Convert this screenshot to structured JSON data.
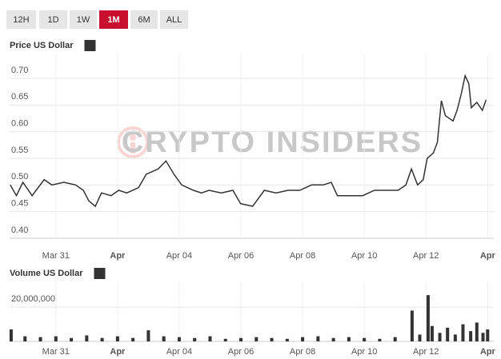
{
  "range_buttons": [
    "12H",
    "1D",
    "1W",
    "1M",
    "6M",
    "ALL"
  ],
  "active_button": 3,
  "watermark": "CRYPTO INSIDERS",
  "chart_data": [
    {
      "type": "line",
      "x": [
        -1.48,
        -1.28,
        -1.07,
        -0.77,
        -0.38,
        -0.13,
        0.26,
        0.64,
        0.89,
        1.07,
        1.28,
        1.48,
        1.79,
        2.04,
        2.3,
        2.68,
        2.93,
        3.32,
        3.57,
        3.83,
        4.08,
        4.46,
        4.72,
        4.97,
        5.36,
        5.74,
        5.99,
        6.38,
        6.76,
        7.14,
        7.53,
        7.91,
        8.29,
        8.67,
        8.93,
        9.13,
        9.57,
        9.95,
        10.33,
        10.71,
        11.1,
        11.35,
        11.53,
        11.73,
        11.91,
        12.04,
        12.24,
        12.37,
        12.5,
        12.63,
        12.88,
        13.01,
        13.14,
        13.27,
        13.39,
        13.47,
        13.65,
        13.83,
        13.95
      ],
      "series": [
        {
          "name": "Price US Dollar",
          "color": "#333333",
          "values": [
            0.5,
            0.48,
            0.505,
            0.48,
            0.51,
            0.5,
            0.505,
            0.5,
            0.49,
            0.47,
            0.46,
            0.485,
            0.48,
            0.49,
            0.485,
            0.495,
            0.52,
            0.53,
            0.545,
            0.52,
            0.5,
            0.49,
            0.485,
            0.49,
            0.485,
            0.49,
            0.465,
            0.46,
            0.49,
            0.485,
            0.49,
            0.49,
            0.5,
            0.5,
            0.505,
            0.48,
            0.48,
            0.48,
            0.49,
            0.49,
            0.49,
            0.5,
            0.53,
            0.5,
            0.51,
            0.55,
            0.56,
            0.58,
            0.658,
            0.63,
            0.62,
            0.64,
            0.67,
            0.705,
            0.69,
            0.645,
            0.655,
            0.64,
            0.66
          ]
        }
      ],
      "xlim": [
        -1.5,
        14.2
      ],
      "xticks": [
        {
          "value": 0,
          "label": "Mar 31"
        },
        {
          "value": 2,
          "label": "Apr"
        },
        {
          "value": 4,
          "label": "Apr 04"
        },
        {
          "value": 6,
          "label": "Apr 06"
        },
        {
          "value": 8,
          "label": "Apr 08"
        },
        {
          "value": 10,
          "label": "Apr 10"
        },
        {
          "value": 12,
          "label": "Apr 12"
        },
        {
          "value": 14,
          "label": "Apr"
        }
      ],
      "ylim": [
        0.4,
        0.745
      ],
      "yticks": [
        {
          "value": 0.4,
          "label": "0.40"
        },
        {
          "value": 0.45,
          "label": "0.45"
        },
        {
          "value": 0.5,
          "label": "0.50"
        },
        {
          "value": 0.55,
          "label": "0.55"
        },
        {
          "value": 0.6,
          "label": "0.60"
        },
        {
          "value": 0.65,
          "label": "0.65"
        },
        {
          "value": 0.7,
          "label": "0.70"
        }
      ],
      "grid": true
    },
    {
      "type": "bar",
      "x": [
        -1.45,
        -1.0,
        -0.5,
        0,
        0.5,
        1,
        1.5,
        2,
        2.5,
        3,
        3.5,
        4,
        4.5,
        5,
        5.5,
        6,
        6.5,
        7,
        7.5,
        8,
        8.5,
        9,
        9.5,
        10,
        10.5,
        11,
        11.55,
        11.8,
        12.07,
        12.2,
        12.45,
        12.7,
        12.95,
        13.2,
        13.45,
        13.65,
        13.85,
        14.0
      ],
      "series": [
        {
          "name": "Volume US Dollar",
          "color": "#333333",
          "values": [
            7000000,
            3000000,
            2500000,
            3000000,
            2000000,
            3500000,
            2000000,
            3000000,
            2000000,
            6500000,
            3000000,
            2500000,
            2000000,
            3000000,
            1500000,
            2000000,
            2500000,
            2000000,
            1500000,
            2500000,
            3000000,
            2000000,
            2500000,
            2000000,
            1500000,
            2500000,
            18000000,
            4000000,
            27000000,
            9000000,
            5000000,
            8000000,
            4000000,
            10000000,
            6000000,
            11000000,
            5000000,
            7000000
          ]
        }
      ],
      "xlim": [
        -1.5,
        14.2
      ],
      "xticks": [
        {
          "value": 0,
          "label": "Mar 31"
        },
        {
          "value": 2,
          "label": "Apr"
        },
        {
          "value": 4,
          "label": "Apr 04"
        },
        {
          "value": 6,
          "label": "Apr 06"
        },
        {
          "value": 8,
          "label": "Apr 08"
        },
        {
          "value": 10,
          "label": "Apr 10"
        },
        {
          "value": 12,
          "label": "Apr 12"
        },
        {
          "value": 14,
          "label": "Apr"
        }
      ],
      "ylim": [
        0,
        35000000
      ],
      "yticks": [
        {
          "value": 20000000,
          "label": "20,000,000"
        }
      ],
      "grid": true
    }
  ]
}
